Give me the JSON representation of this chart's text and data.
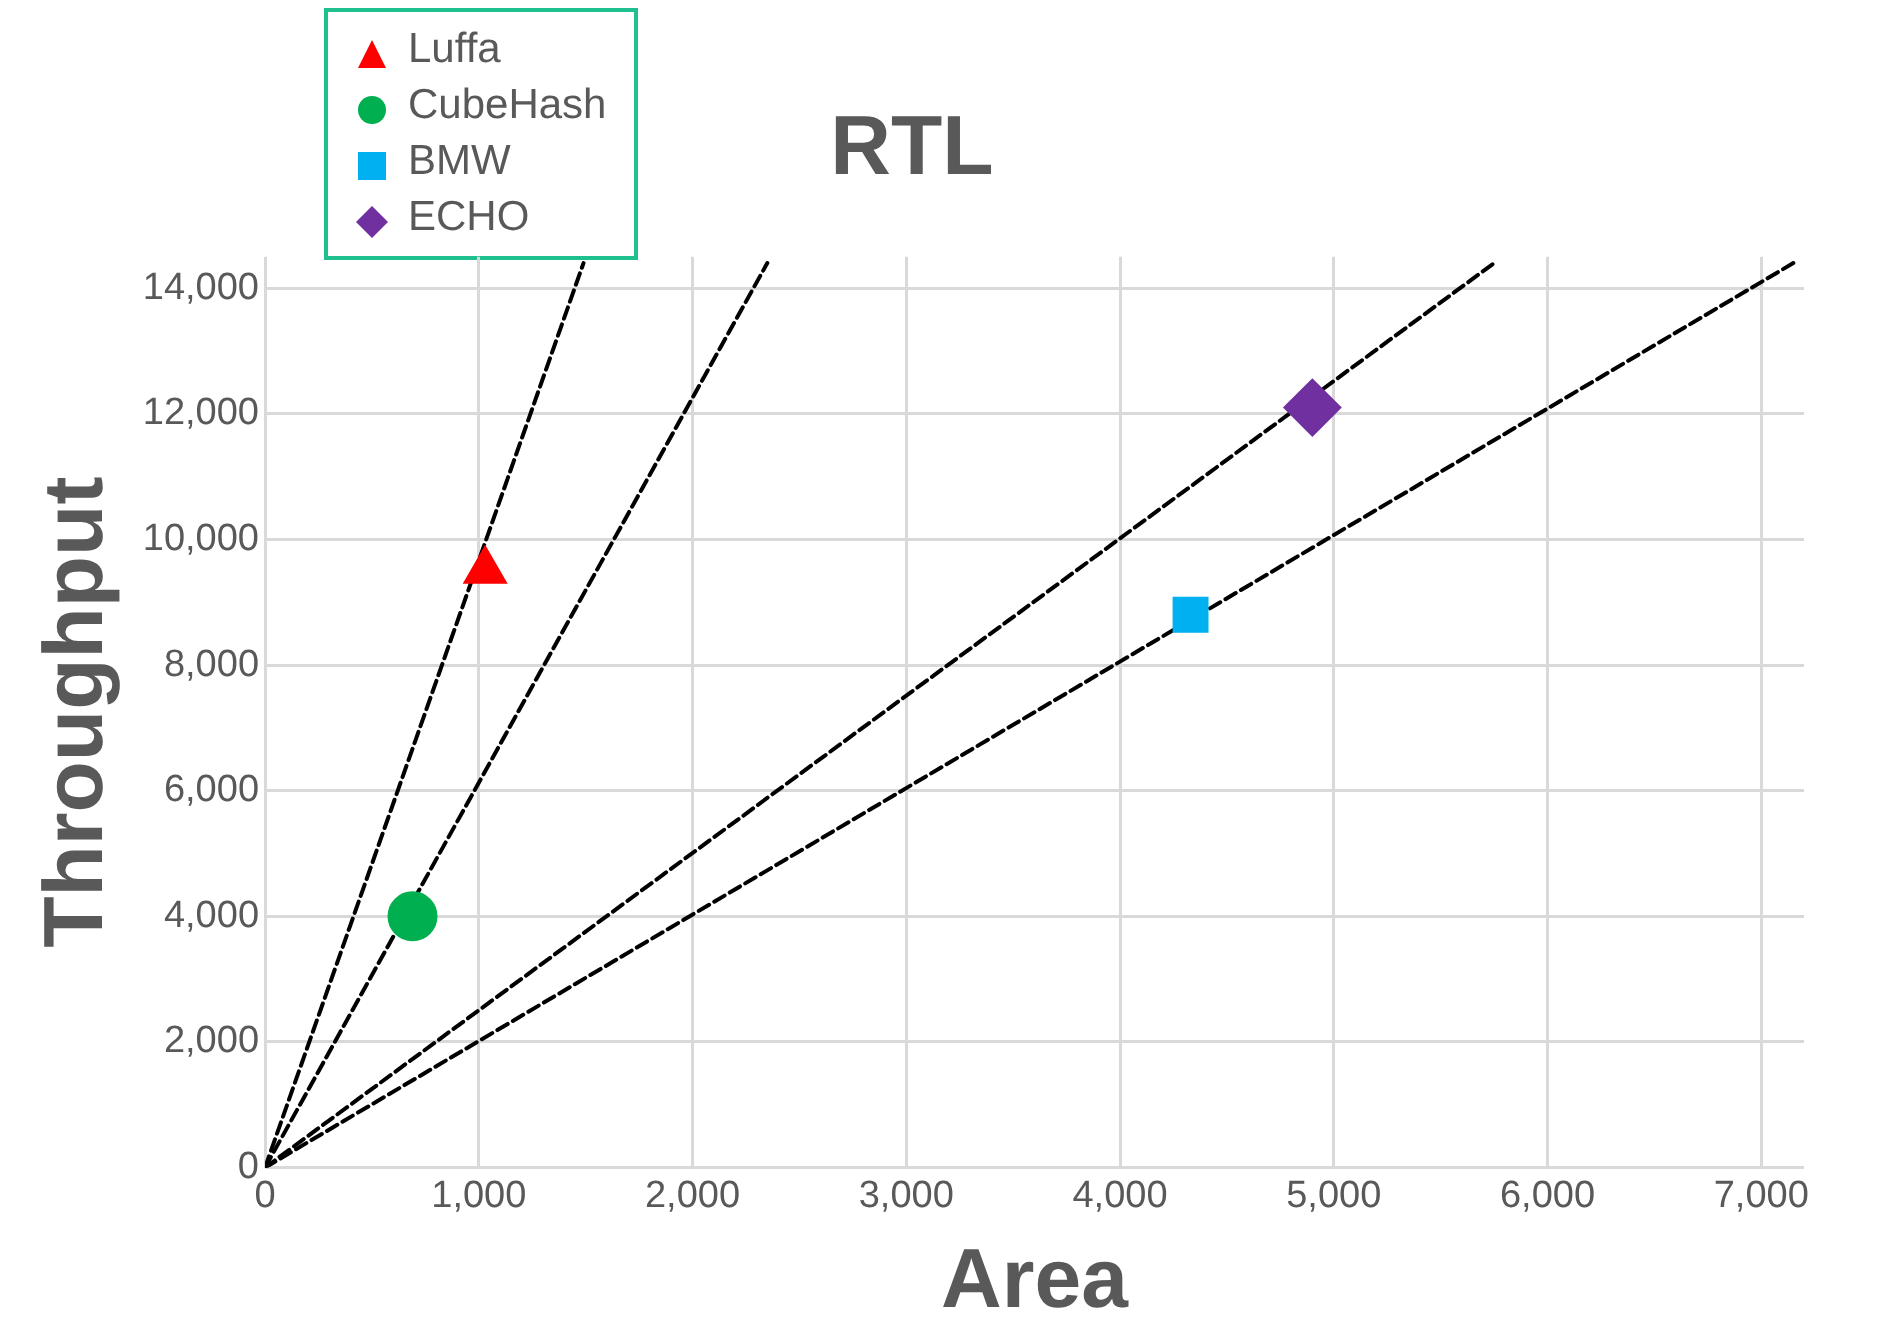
{
  "chart_data": {
    "type": "scatter",
    "title": "RTL",
    "xlabel": "Area",
    "ylabel": "Throughput",
    "xlim": [
      0,
      7200
    ],
    "ylim": [
      0,
      14500
    ],
    "xticks": [
      0,
      {
        "value": 1000,
        "label": "1,000"
      },
      {
        "value": 2000,
        "label": "2,000"
      },
      {
        "value": 3000,
        "label": "3,000"
      },
      {
        "value": 4000,
        "label": "4,000"
      },
      {
        "value": 5000,
        "label": "5,000"
      },
      {
        "value": 6000,
        "label": "6,000"
      },
      {
        "value": 7000,
        "label": "7,000"
      }
    ],
    "yticks": [
      0,
      {
        "value": 2000,
        "label": "2,000"
      },
      {
        "value": 4000,
        "label": "4,000"
      },
      {
        "value": 6000,
        "label": "6,000"
      },
      {
        "value": 8000,
        "label": "8,000"
      },
      {
        "value": 10000,
        "label": "10,000"
      },
      {
        "value": 12000,
        "label": "12,000"
      },
      {
        "value": 14000,
        "label": "14,000"
      }
    ],
    "grid": true,
    "legend": "top left",
    "series": [
      {
        "name": "Luffa",
        "type": "scatter",
        "marker": "triangle",
        "color": "#ff0000",
        "x": [
          1030
        ],
        "values": [
          9500
        ]
      },
      {
        "name": "CubeHash",
        "type": "scatter",
        "marker": "circle",
        "color": "#00b050",
        "x": [
          690
        ],
        "values": [
          4000
        ]
      },
      {
        "name": "BMW",
        "type": "scatter",
        "marker": "square",
        "color": "#00b0f0",
        "x": [
          4330
        ],
        "values": [
          8800
        ]
      },
      {
        "name": "ECHO",
        "type": "scatter",
        "marker": "diamond",
        "color": "#7030a0",
        "x": [
          4900
        ],
        "values": [
          12100
        ]
      },
      {
        "type": "line",
        "line_style": "dashed",
        "color": "#000000",
        "x": [
          0,
          1490
        ],
        "values": [
          0,
          14400
        ]
      },
      {
        "type": "line",
        "line_style": "dashed",
        "color": "#000000",
        "x": [
          0,
          2350
        ],
        "values": [
          0,
          14400
        ]
      },
      {
        "type": "line",
        "line_style": "dashed",
        "color": "#000000",
        "x": [
          0,
          5750
        ],
        "values": [
          0,
          14400
        ]
      },
      {
        "type": "line",
        "line_style": "dashed",
        "color": "#000000",
        "x": [
          0,
          7150
        ],
        "values": [
          0,
          14400
        ]
      }
    ]
  }
}
